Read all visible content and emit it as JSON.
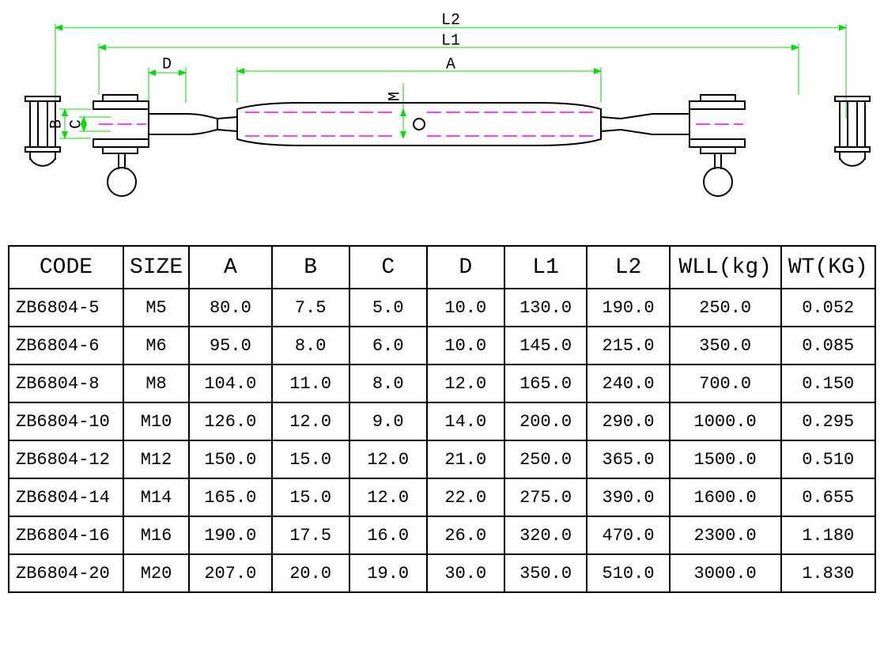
{
  "diagram": {
    "dimension_labels": {
      "L2": "L2",
      "L1": "L1",
      "A": "A",
      "D": "D",
      "M": "M",
      "B": "B",
      "C": "C"
    },
    "colors": {
      "outline": "#000000",
      "dimension_line": "#00e000",
      "centerline": "#ff00ff",
      "background": "#ffffff"
    },
    "stroke_width_outline": 2,
    "stroke_width_dim": 1,
    "font_size_label": 20
  },
  "table": {
    "columns": [
      "CODE",
      "SIZE",
      "A",
      "B",
      "C",
      "D",
      "L1",
      "L2",
      "WLL(kg)",
      "WT(KG)"
    ],
    "rows": [
      [
        "ZB6804-5",
        "M5",
        "80.0",
        "7.5",
        "5.0",
        "10.0",
        "130.0",
        "190.0",
        "250.0",
        "0.052"
      ],
      [
        "ZB6804-6",
        "M6",
        "95.0",
        "8.0",
        "6.0",
        "10.0",
        "145.0",
        "215.0",
        "350.0",
        "0.085"
      ],
      [
        "ZB6804-8",
        "M8",
        "104.0",
        "11.0",
        "8.0",
        "12.0",
        "165.0",
        "240.0",
        "700.0",
        "0.150"
      ],
      [
        "ZB6804-10",
        "M10",
        "126.0",
        "12.0",
        "9.0",
        "14.0",
        "200.0",
        "290.0",
        "1000.0",
        "0.295"
      ],
      [
        "ZB6804-12",
        "M12",
        "150.0",
        "15.0",
        "12.0",
        "21.0",
        "250.0",
        "365.0",
        "1500.0",
        "0.510"
      ],
      [
        "ZB6804-14",
        "M14",
        "165.0",
        "15.0",
        "12.0",
        "22.0",
        "275.0",
        "390.0",
        "1600.0",
        "0.655"
      ],
      [
        "ZB6804-16",
        "M16",
        "190.0",
        "17.5",
        "16.0",
        "26.0",
        "320.0",
        "470.0",
        "2300.0",
        "1.180"
      ],
      [
        "ZB6804-20",
        "M20",
        "207.0",
        "20.0",
        "19.0",
        "30.0",
        "350.0",
        "510.0",
        "3000.0",
        "1.830"
      ]
    ],
    "header_fontsize": 28,
    "cell_fontsize": 22,
    "border_color": "#000000",
    "border_width": 2
  }
}
